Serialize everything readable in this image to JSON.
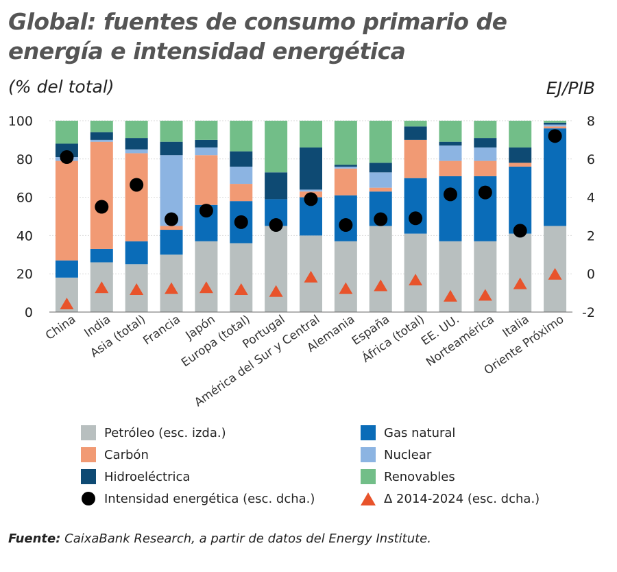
{
  "title": "Global: fuentes de consumo primario de energía e intensidad energética",
  "unit_left": "(% del total)",
  "unit_right": "EJ/PIB",
  "source_label": "Fuente:",
  "source_text": " CaixaBank Research, a partir de datos del Energy Institute.",
  "colors": {
    "petroleo": "#B8BFBF",
    "gas": "#0A6CB8",
    "carbon": "#F19A74",
    "nuclear": "#8CB4E2",
    "hidro": "#0E4A73",
    "renovables": "#72BE88",
    "intensidad": "#000000",
    "delta": "#E8532B"
  },
  "legend": [
    {
      "key": "petroleo",
      "label": "Petróleo (esc. izda.)",
      "kind": "box"
    },
    {
      "key": "gas",
      "label": "Gas natural",
      "kind": "box"
    },
    {
      "key": "carbon",
      "label": "Carbón",
      "kind": "box"
    },
    {
      "key": "nuclear",
      "label": "Nuclear",
      "kind": "box"
    },
    {
      "key": "hidro",
      "label": "Hidroeléctrica",
      "kind": "box"
    },
    {
      "key": "renovables",
      "label": "Renovables",
      "kind": "box"
    },
    {
      "key": "intensidad",
      "label": "Intensidad energética (esc. dcha.)",
      "kind": "dot"
    },
    {
      "key": "delta",
      "label": "Δ 2014-2024 (esc. dcha.)",
      "kind": "triangle"
    }
  ],
  "chart_data": {
    "type": "bar",
    "stacked": true,
    "categories": [
      "China",
      "India",
      "Asia (total)",
      "Francia",
      "Japón",
      "Europa (total)",
      "Portugal",
      "América del Sur y Central",
      "Alemania",
      "España",
      "África (total)",
      "EE. UU.",
      "Norteamérica",
      "Italia",
      "Oriente Próximo"
    ],
    "left_axis": {
      "ylim": [
        0,
        100
      ],
      "ticks": [
        0,
        20,
        40,
        60,
        80,
        100
      ]
    },
    "right_axis": {
      "ylim": [
        -2,
        8
      ],
      "ticks": [
        -2,
        0,
        2,
        4,
        6,
        8
      ]
    },
    "series": [
      {
        "name": "Petróleo (esc. izda.)",
        "key": "petroleo",
        "values": [
          18,
          26,
          25,
          30,
          37,
          36,
          45,
          40,
          37,
          45,
          41,
          37,
          37,
          41,
          45
        ]
      },
      {
        "name": "Gas natural",
        "key": "gas",
        "values": [
          9,
          7,
          12,
          13,
          19,
          22,
          14,
          20,
          24,
          18,
          29,
          34,
          34,
          35,
          51
        ]
      },
      {
        "name": "Carbón",
        "key": "carbon",
        "values": [
          52,
          56,
          46,
          2,
          26,
          9,
          0,
          3,
          14,
          2,
          20,
          8,
          8,
          2,
          1
        ]
      },
      {
        "name": "Nuclear",
        "key": "nuclear",
        "values": [
          2,
          1,
          2,
          37,
          4,
          9,
          0,
          1,
          1,
          8,
          0,
          8,
          7,
          0,
          1
        ]
      },
      {
        "name": "Hidroeléctrica",
        "key": "hidro",
        "values": [
          7,
          4,
          6,
          7,
          4,
          8,
          14,
          22,
          1,
          5,
          7,
          2,
          5,
          8,
          1
        ]
      },
      {
        "name": "Renovables",
        "key": "renovables",
        "values": [
          12,
          6,
          9,
          11,
          10,
          16,
          27,
          14,
          23,
          22,
          3,
          11,
          9,
          14,
          1
        ]
      }
    ],
    "markers": [
      {
        "name": "Intensidad energética (esc. dcha.)",
        "key": "intensidad",
        "shape": "circle",
        "values": [
          6.1,
          3.5,
          4.65,
          2.85,
          3.3,
          2.7,
          2.55,
          3.9,
          2.55,
          2.85,
          2.9,
          4.15,
          4.25,
          2.25,
          7.2
        ]
      },
      {
        "name": "Δ 2014-2024 (esc. dcha.)",
        "key": "delta",
        "shape": "triangle",
        "values": [
          -1.55,
          -0.7,
          -0.8,
          -0.75,
          -0.7,
          -0.8,
          -0.9,
          -0.15,
          -0.75,
          -0.6,
          -0.3,
          -1.15,
          -1.1,
          -0.5,
          0.0
        ]
      }
    ]
  }
}
